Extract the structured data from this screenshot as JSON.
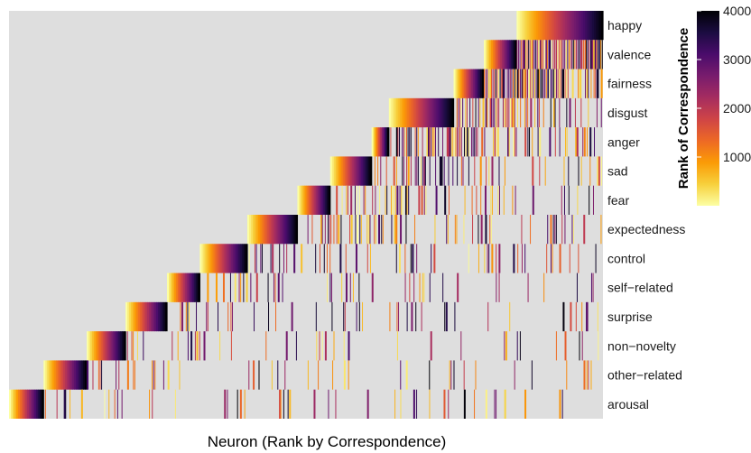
{
  "chart_data": {
    "type": "heatmap",
    "title": "",
    "xlabel": "Neuron (Rank by Correspondence)",
    "ylabel": "",
    "rows": [
      "happy",
      "valence",
      "fairness",
      "disgust",
      "anger",
      "sad",
      "fear",
      "expectedness",
      "control",
      "self−related",
      "surprise",
      "non−novelty",
      "other−related",
      "arousal"
    ],
    "block_widths": [
      100,
      38,
      35,
      75,
      20,
      48,
      38,
      58,
      55,
      38,
      48,
      45,
      50,
      40
    ],
    "colorbar": {
      "title": "Rank of Correspondence",
      "range": [
        1,
        4000
      ],
      "ticks": [
        1000,
        2000,
        3000,
        4000
      ],
      "colors": [
        "#fcffa4",
        "#f7d03c",
        "#fb9b06",
        "#ed6925",
        "#cf4446",
        "#a52c60",
        "#781c6d",
        "#4a0c6b",
        "#1b0c41",
        "#000004"
      ]
    },
    "background": "#dedede",
    "note_density": [
      0.0,
      0.55,
      0.45,
      0.35,
      0.3,
      0.22,
      0.2,
      0.15,
      0.14,
      0.12,
      0.11,
      0.1,
      0.1,
      0.09
    ]
  }
}
